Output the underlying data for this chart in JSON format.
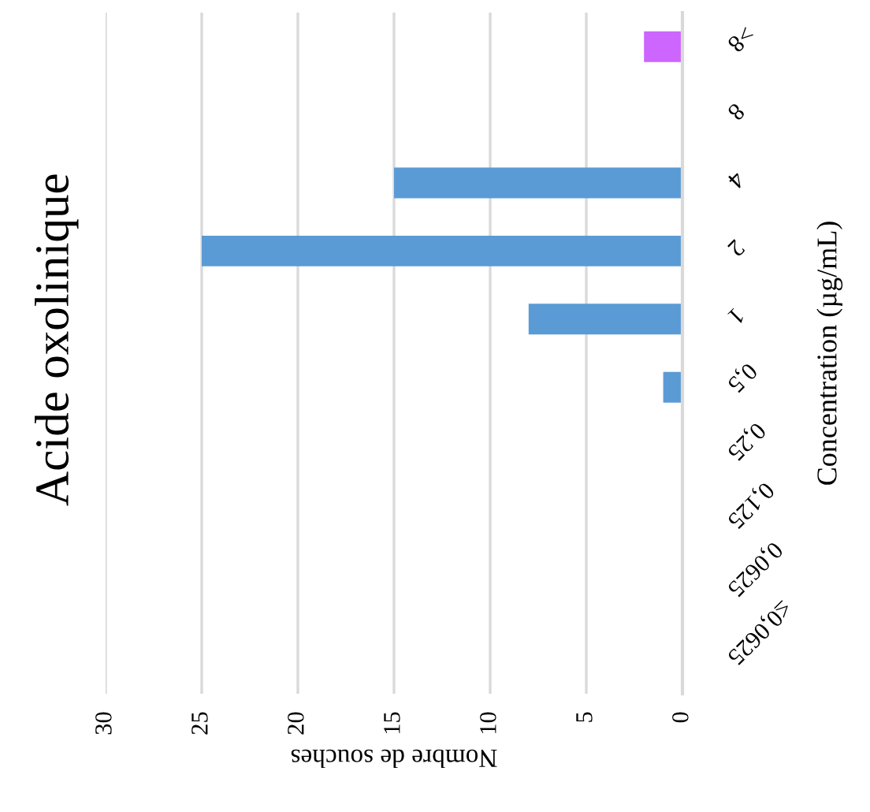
{
  "chart_data": {
    "type": "bar",
    "orientation": "horizontal",
    "title": "Acide oxolinique",
    "xlabel": "Nombre de souches",
    "ylabel": "Concentration (µg/mL)",
    "categories": [
      ">8",
      "8",
      "4",
      "2",
      "1",
      "0,5",
      "0,25",
      "0,125",
      "0,0625",
      "≤0,0625"
    ],
    "values": [
      2,
      0,
      15,
      25,
      8,
      1,
      0,
      0,
      0,
      0
    ],
    "colors": [
      "#cc66ff",
      "#5b9bd5",
      "#5b9bd5",
      "#5b9bd5",
      "#5b9bd5",
      "#5b9bd5",
      "#5b9bd5",
      "#5b9bd5",
      "#5b9bd5",
      "#5b9bd5"
    ],
    "xlim": [
      30,
      0
    ],
    "xticks": [
      30,
      25,
      20,
      15,
      10,
      5,
      0
    ],
    "grid": "x"
  }
}
